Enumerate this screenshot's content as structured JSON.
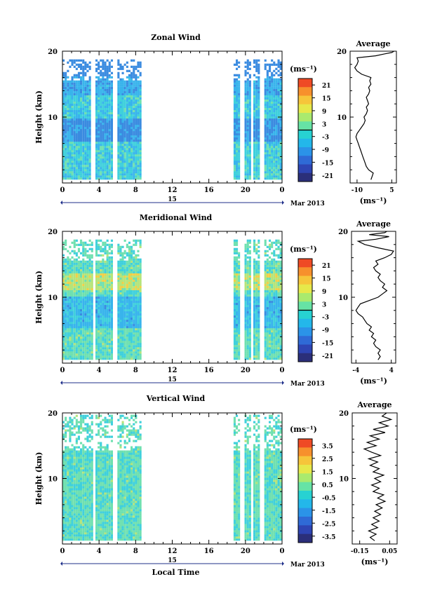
{
  "chart_data": [
    {
      "type": "heatmap",
      "title": "Zonal Wind",
      "ylabel": "Height (km)",
      "ylim": [
        0,
        20
      ],
      "yticks": [
        10,
        20
      ],
      "xlim": [
        0,
        24
      ],
      "xticks": [
        "0",
        "4",
        "8",
        "12",
        "16",
        "20",
        "0"
      ],
      "date_day": "15",
      "date_month_year": "Mar 2013",
      "data_segments_hours": [
        [
          0,
          8.5
        ],
        [
          18.7,
          23.8
        ]
      ],
      "data_height_range_km": [
        0.5,
        18.5
      ],
      "colorbar": {
        "unit": "(ms⁻¹)",
        "ticks": [
          "21",
          "15",
          "9",
          "3",
          "-3",
          "-9",
          "-15",
          "-21"
        ],
        "range": [
          -24,
          24
        ]
      },
      "profile": {
        "title": "Average",
        "xlabel": "(ms⁻¹)",
        "xlim": [
          -13,
          7
        ],
        "xticks": [
          "-10",
          "5"
        ],
        "yticks": [
          "10",
          "20"
        ],
        "values": [
          [
            -4,
            0.5
          ],
          [
            -3.5,
            1
          ],
          [
            -3,
            1.5
          ],
          [
            -5,
            2
          ],
          [
            -6,
            2.5
          ],
          [
            -6.5,
            3
          ],
          [
            -7,
            3.5
          ],
          [
            -7.5,
            4
          ],
          [
            -8,
            4.5
          ],
          [
            -8.5,
            5
          ],
          [
            -9,
            5.5
          ],
          [
            -9.5,
            6
          ],
          [
            -10,
            6.5
          ],
          [
            -10.5,
            7
          ],
          [
            -10,
            7.5
          ],
          [
            -9,
            8
          ],
          [
            -8,
            8.5
          ],
          [
            -7,
            9
          ],
          [
            -6.5,
            9.5
          ],
          [
            -7,
            10
          ],
          [
            -6,
            10.5
          ],
          [
            -5.5,
            11
          ],
          [
            -6,
            11.5
          ],
          [
            -5,
            12
          ],
          [
            -5.5,
            12.5
          ],
          [
            -6,
            13
          ],
          [
            -5,
            13.5
          ],
          [
            -4.5,
            14
          ],
          [
            -5,
            14.5
          ],
          [
            -4,
            15
          ],
          [
            -4.5,
            15.5
          ],
          [
            -4,
            16
          ],
          [
            -8,
            16.5
          ],
          [
            -10,
            17
          ],
          [
            -11,
            17.5
          ],
          [
            -10,
            18
          ],
          [
            -9.5,
            18.5
          ],
          [
            -10,
            19
          ],
          [
            -2,
            19.3
          ],
          [
            2,
            19.6
          ],
          [
            5,
            19.8
          ],
          [
            6,
            20
          ]
        ]
      }
    },
    {
      "type": "heatmap",
      "title": "Meridional Wind",
      "ylabel": "Height (km)",
      "ylim": [
        0,
        20
      ],
      "yticks": [
        10,
        20
      ],
      "xlim": [
        0,
        24
      ],
      "xticks": [
        "0",
        "4",
        "8",
        "12",
        "16",
        "20",
        "0"
      ],
      "date_day": "15",
      "date_month_year": "Mar 2013",
      "data_segments_hours": [
        [
          0,
          8.5
        ],
        [
          18.7,
          23.8
        ]
      ],
      "data_height_range_km": [
        0.5,
        18.5
      ],
      "colorbar": {
        "unit": "(ms⁻¹)",
        "ticks": [
          "21",
          "15",
          "9",
          "3",
          "-3",
          "-9",
          "-15",
          "-21"
        ],
        "range": [
          -24,
          24
        ]
      },
      "profile": {
        "title": "Average",
        "xlabel": "(ms⁻¹)",
        "xlim": [
          -5,
          5
        ],
        "xticks": [
          "-4",
          "4"
        ],
        "yticks": [
          "10",
          "20"
        ],
        "values": [
          [
            1,
            0.5
          ],
          [
            1.5,
            1
          ],
          [
            1,
            1.5
          ],
          [
            1.5,
            2
          ],
          [
            0.5,
            2.5
          ],
          [
            0,
            3
          ],
          [
            0.5,
            3.5
          ],
          [
            -0.5,
            4
          ],
          [
            0,
            4.5
          ],
          [
            -1,
            5
          ],
          [
            -0.5,
            5.5
          ],
          [
            -1.5,
            6
          ],
          [
            -2,
            6.5
          ],
          [
            -2.5,
            7
          ],
          [
            -3.5,
            7.5
          ],
          [
            -4,
            8
          ],
          [
            -3.5,
            8.5
          ],
          [
            -3,
            9
          ],
          [
            -1,
            9.5
          ],
          [
            1,
            10
          ],
          [
            2,
            10.5
          ],
          [
            3,
            11
          ],
          [
            2,
            11.5
          ],
          [
            2.5,
            12
          ],
          [
            1.5,
            12.5
          ],
          [
            1,
            13
          ],
          [
            1.5,
            13.5
          ],
          [
            0.5,
            14
          ],
          [
            0,
            14.5
          ],
          [
            1,
            15
          ],
          [
            0.5,
            15.5
          ],
          [
            2.5,
            16
          ],
          [
            4,
            16.5
          ],
          [
            4.5,
            17
          ],
          [
            1,
            17.5
          ],
          [
            -2,
            18
          ],
          [
            -3.5,
            18.5
          ],
          [
            0.5,
            18.8
          ],
          [
            3.5,
            19.2
          ],
          [
            -1,
            19.5
          ],
          [
            2.5,
            19.8
          ],
          [
            3,
            20
          ]
        ]
      }
    },
    {
      "type": "heatmap",
      "title": "Vertical Wind",
      "ylabel": "Height (km)",
      "xlabel": "Local Time",
      "ylim": [
        0,
        20
      ],
      "yticks": [
        10,
        20
      ],
      "xlim": [
        0,
        24
      ],
      "xticks": [
        "0",
        "4",
        "8",
        "12",
        "16",
        "20",
        "0"
      ],
      "date_day": "15",
      "date_month_year": "Mar 2013",
      "data_segments_hours": [
        [
          0,
          8.5
        ],
        [
          18.7,
          23.8
        ]
      ],
      "data_height_range_km": [
        0.5,
        19.5
      ],
      "colorbar": {
        "unit": "(ms⁻¹)",
        "ticks": [
          "3.5",
          "2.5",
          "1.5",
          "0.5",
          "-0.5",
          "-1.5",
          "-2.5",
          "-3.5"
        ],
        "range": [
          -4,
          4
        ]
      },
      "profile": {
        "title": "Average",
        "xlabel": "(ms⁻¹)",
        "xlim": [
          -0.2,
          0.1
        ],
        "xticks": [
          "-0.15",
          "0.05"
        ],
        "yticks": [
          "10",
          "20"
        ],
        "values": [
          [
            -0.05,
            0.5
          ],
          [
            -0.08,
            1
          ],
          [
            -0.04,
            1.5
          ],
          [
            -0.09,
            2
          ],
          [
            -0.03,
            2.5
          ],
          [
            -0.07,
            3
          ],
          [
            -0.02,
            3.5
          ],
          [
            -0.06,
            4
          ],
          [
            -0.01,
            4.5
          ],
          [
            -0.05,
            5
          ],
          [
            0.0,
            5.5
          ],
          [
            -0.04,
            6
          ],
          [
            0.02,
            6.5
          ],
          [
            -0.03,
            7
          ],
          [
            0.01,
            7.5
          ],
          [
            -0.06,
            8
          ],
          [
            -0.02,
            8.5
          ],
          [
            -0.07,
            9
          ],
          [
            -0.01,
            9.5
          ],
          [
            -0.05,
            10
          ],
          [
            0.01,
            10.5
          ],
          [
            -0.06,
            11
          ],
          [
            -0.02,
            11.5
          ],
          [
            -0.08,
            12
          ],
          [
            -0.03,
            12.5
          ],
          [
            -0.09,
            13
          ],
          [
            -0.01,
            13.5
          ],
          [
            -0.07,
            14
          ],
          [
            -0.12,
            14.5
          ],
          [
            -0.04,
            15
          ],
          [
            -0.1,
            15.5
          ],
          [
            -0.02,
            16
          ],
          [
            -0.08,
            16.5
          ],
          [
            0.02,
            17
          ],
          [
            -0.06,
            17.5
          ],
          [
            0.04,
            18
          ],
          [
            -0.02,
            18.5
          ],
          [
            0.06,
            19
          ],
          [
            0.0,
            19.5
          ],
          [
            0.03,
            20
          ]
        ]
      }
    }
  ]
}
